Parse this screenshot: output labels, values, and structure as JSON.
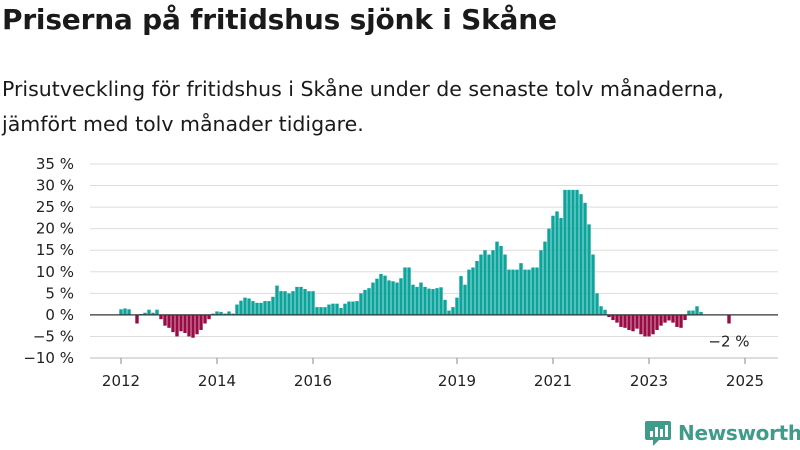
{
  "title": "Priserna på fritidshus sjönk i Skåne",
  "subtitle": "Prisutveckling för fritidshus i Skåne under de senaste tolv månaderna, jämfört med tolv månader tidigare.",
  "brand": {
    "name": "Newsworthy",
    "color": "#3f9b8a",
    "icon": "newsworthy-logo-icon"
  },
  "chart_data": {
    "type": "bar",
    "y_unit": "%",
    "ylim": [
      -10,
      35
    ],
    "y_ticks": [
      35,
      30,
      25,
      20,
      15,
      10,
      5,
      0,
      -5,
      -10
    ],
    "y_tick_labels": [
      "35 %",
      "30 %",
      "25 %",
      "20 %",
      "15 %",
      "10 %",
      "5 %",
      "0 %",
      "−5 %",
      "−10 %"
    ],
    "x_tick_labels": [
      "2012",
      "2014",
      "2016",
      "2019",
      "2021",
      "2023",
      "2025"
    ],
    "x_tick_dates": [
      "2012-01",
      "2014-01",
      "2016-01",
      "2019-01",
      "2021-01",
      "2023-01",
      "2025-01"
    ],
    "start_month": "2012-01",
    "grid": true,
    "colors": {
      "positive": "#0ca59b",
      "negative": "#9a0b45",
      "zero_line": "#333333",
      "grid": "#dddddd"
    },
    "last_value_label": "−2 %",
    "values": [
      1.3,
      1.5,
      1.3,
      0,
      -2,
      0.2,
      0.5,
      1.2,
      0.5,
      1.2,
      -1,
      -2.5,
      -3,
      -4,
      -5,
      -3.8,
      -4.2,
      -5,
      -5.3,
      -4.5,
      -3.5,
      -2,
      -1,
      0.3,
      0.8,
      0.7,
      0.3,
      0.8,
      0.3,
      2.4,
      3.3,
      4,
      3.8,
      3.2,
      2.8,
      2.8,
      3.2,
      3.2,
      4.2,
      6.8,
      5.5,
      5.5,
      5,
      5.5,
      6.5,
      6.5,
      6,
      5.5,
      5.5,
      1.8,
      1.8,
      1.8,
      2.4,
      2.6,
      2.6,
      1.6,
      2.6,
      3.1,
      3.1,
      3.2,
      5,
      5.8,
      6.2,
      7.5,
      8.4,
      9.5,
      9.1,
      8,
      7.8,
      7.5,
      8.5,
      11,
      11,
      7,
      6.5,
      7.5,
      6.5,
      6.1,
      6,
      6.2,
      6.4,
      3.5,
      1,
      1.8,
      4,
      9,
      7,
      10.5,
      11,
      12.5,
      14,
      15,
      14,
      15,
      17,
      16,
      14,
      10.5,
      10.5,
      10.5,
      12,
      10.5,
      10.5,
      11,
      11,
      15,
      17,
      20,
      23,
      24,
      22.5,
      29,
      29,
      29,
      29,
      28,
      26,
      21,
      14,
      5,
      2,
      1.2,
      -0.5,
      -1.2,
      -1.8,
      -2.8,
      -3,
      -3.5,
      -3.8,
      -3.2,
      -4.5,
      -5,
      -5,
      -4.5,
      -3.5,
      -2.5,
      -1.8,
      -1.3,
      -1.8,
      -2.8,
      -3,
      -1.2,
      1,
      1,
      2,
      0.7,
      0,
      0,
      0,
      0,
      0,
      0,
      -2
    ]
  }
}
